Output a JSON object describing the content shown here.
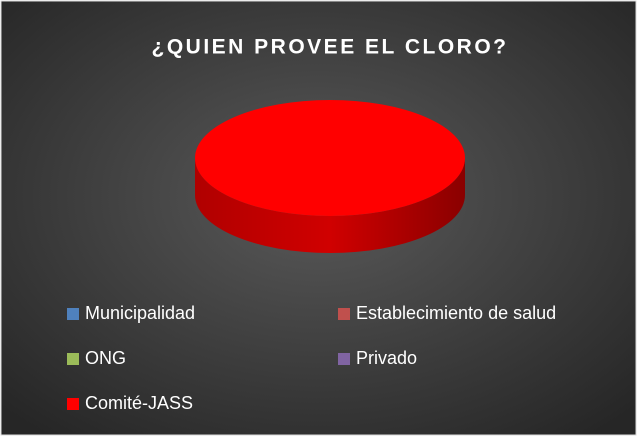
{
  "chart_data": {
    "type": "pie",
    "title": "¿QUIEN PROVEE EL CLORO?",
    "categories": [
      "Municipalidad",
      "Establecimiento de salud",
      "ONG",
      "Privado",
      "Comité-JASS"
    ],
    "values": [
      0,
      0,
      0,
      0,
      100
    ],
    "colors": [
      "#4f81bd",
      "#c0504d",
      "#9bbb59",
      "#8064a2",
      "#ff0000"
    ],
    "legend": "bottom"
  }
}
